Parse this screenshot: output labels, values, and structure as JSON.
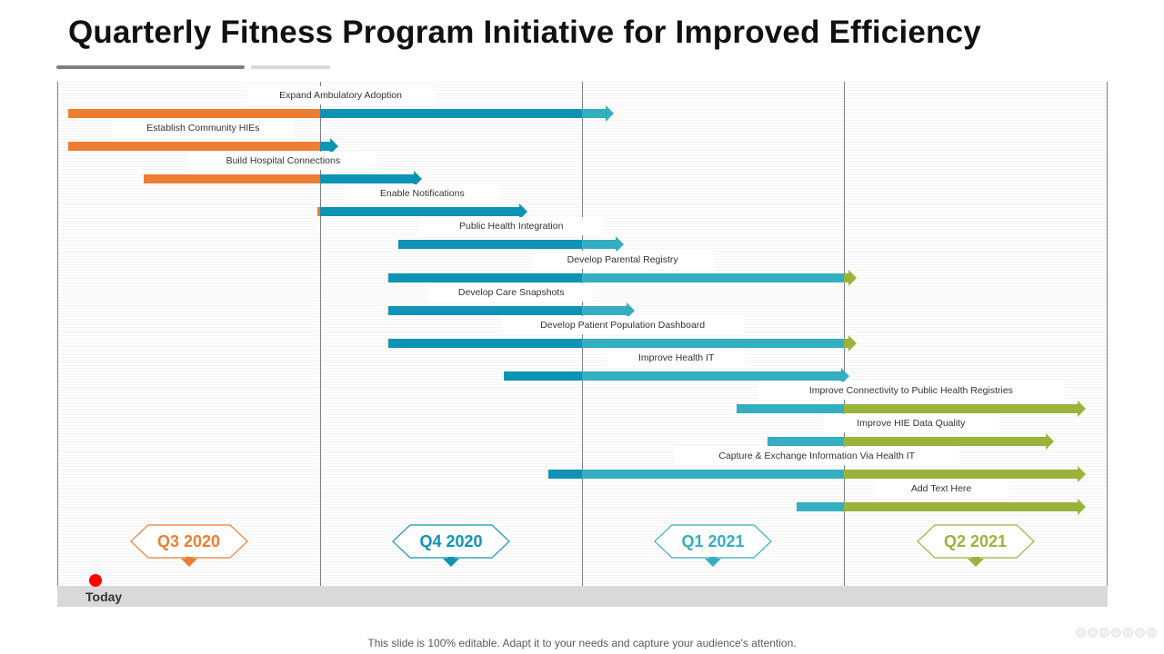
{
  "title": "Quarterly Fitness Program Initiative for Improved Efficiency",
  "colors": {
    "q3_2020": "#ED7D31",
    "q4_2020": "#0E93B4",
    "q1_2021": "#35AEC0",
    "q2_2021": "#9AB33B",
    "today_marker": "#FF0000"
  },
  "quarters": [
    {
      "label": "Q3 2020",
      "color_key": "q3_2020"
    },
    {
      "label": "Q4 2020",
      "color_key": "q4_2020"
    },
    {
      "label": "Q1 2021",
      "color_key": "q1_2021"
    },
    {
      "label": "Q2 2021",
      "color_key": "q2_2021"
    }
  ],
  "tasks": [
    {
      "label": "Expand Ambulatory Adoption",
      "start_quarter": 0.04,
      "end_quarter": 2.12
    },
    {
      "label": "Establish Community  HIEs",
      "start_quarter": 0.04,
      "end_quarter": 1.07
    },
    {
      "label": "Build Hospital Connections",
      "start_quarter": 0.33,
      "end_quarter": 1.39
    },
    {
      "label": "Enable Notifications",
      "start_quarter": 0.99,
      "end_quarter": 1.79
    },
    {
      "label": "Public Health Integration",
      "start_quarter": 1.3,
      "end_quarter": 2.16
    },
    {
      "label": "Develop Parental Registry",
      "start_quarter": 1.26,
      "end_quarter": 3.05
    },
    {
      "label": "Develop Care Snapshots",
      "start_quarter": 1.26,
      "end_quarter": 2.2
    },
    {
      "label": "Develop Patient Population Dashboard",
      "start_quarter": 1.26,
      "end_quarter": 3.05
    },
    {
      "label": "Improve Health IT",
      "start_quarter": 1.7,
      "end_quarter": 3.02
    },
    {
      "label": "Improve Connectivity to Public Health Registries",
      "start_quarter": 2.59,
      "end_quarter": 3.92
    },
    {
      "label": "Improve HIE Data Quality",
      "start_quarter": 2.71,
      "end_quarter": 3.8
    },
    {
      "label": "Capture & Exchange Information Via Health IT",
      "start_quarter": 1.87,
      "end_quarter": 3.92
    },
    {
      "label": "Add Text Here",
      "start_quarter": 2.82,
      "end_quarter": 3.92
    }
  ],
  "today": {
    "label": "Today"
  },
  "footer": "This slide is 100% editable. Adapt it to your needs and capture your audience's attention."
}
